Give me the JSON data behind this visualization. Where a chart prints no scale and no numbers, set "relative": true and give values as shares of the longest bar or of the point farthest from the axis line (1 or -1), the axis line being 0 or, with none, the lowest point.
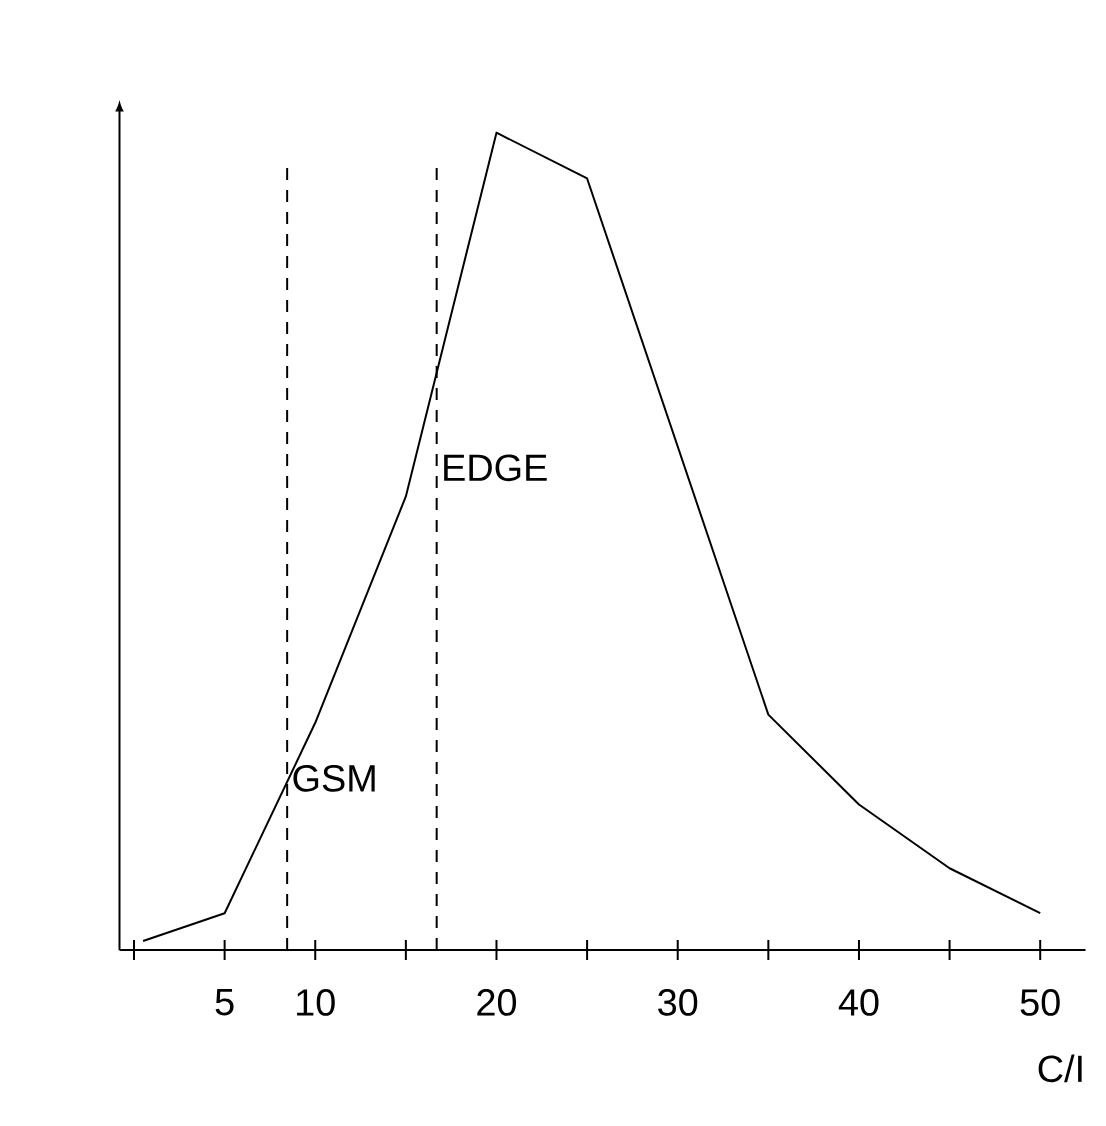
{
  "chart_data": {
    "type": "line",
    "relative": true,
    "xlabel": "C/I",
    "x": [
      0.5,
      5,
      10,
      15,
      20,
      25,
      35,
      40,
      45,
      50
    ],
    "values": [
      0.011,
      0.045,
      0.278,
      0.555,
      1,
      0.944,
      0.288,
      0.178,
      0.1,
      0.045
    ],
    "color": "#000000",
    "marker": "none",
    "line_style": "solid",
    "grid": false,
    "xlim": [
      -0.8,
      52.5
    ],
    "xticks": [
      {
        "value": 0,
        "label": null
      },
      5,
      10,
      {
        "value": 15,
        "label": null
      },
      20,
      {
        "value": 25,
        "label": null
      },
      30,
      {
        "value": 35,
        "label": null
      },
      40,
      {
        "value": 45,
        "label": null
      },
      50
    ],
    "ref_lines": [
      {
        "axis": "x",
        "value": 8.45,
        "label": "GSM",
        "line_style": "dashed",
        "color": "#000000"
      },
      {
        "axis": "x",
        "value": 16.7,
        "label": "EDGE",
        "line_style": "dashed",
        "color": "#000000"
      }
    ]
  }
}
